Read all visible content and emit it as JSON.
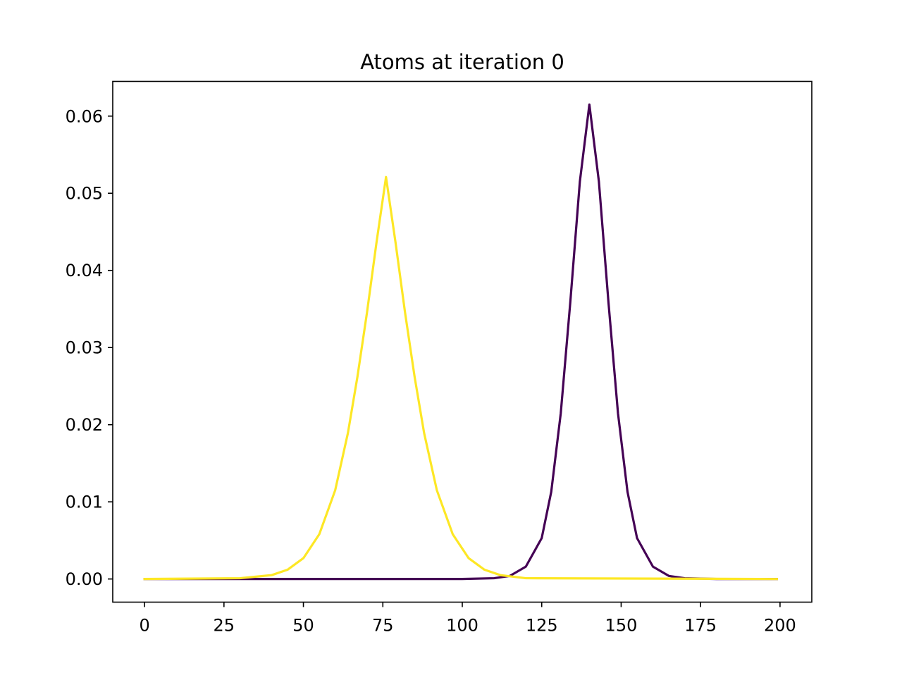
{
  "chart_data": {
    "type": "line",
    "title": "Atoms at iteration 0",
    "xlabel": "",
    "ylabel": "",
    "xlim": [
      -10,
      210
    ],
    "ylim": [
      -0.003,
      0.0645
    ],
    "xticks": [
      0,
      25,
      50,
      75,
      100,
      125,
      150,
      175,
      200
    ],
    "xtick_labels": [
      "0",
      "25",
      "50",
      "75",
      "100",
      "125",
      "150",
      "175",
      "200"
    ],
    "yticks": [
      0.0,
      0.01,
      0.02,
      0.03,
      0.04,
      0.05,
      0.06
    ],
    "ytick_labels": [
      "0.00",
      "0.01",
      "0.02",
      "0.03",
      "0.04",
      "0.05",
      "0.06"
    ],
    "grid": false,
    "legend": "none",
    "series": [
      {
        "color": "#440154",
        "x": [
          0,
          100,
          110,
          115,
          120,
          125,
          128,
          131,
          134,
          137,
          140,
          143,
          146,
          149,
          152,
          155,
          160,
          165,
          170,
          180,
          199
        ],
        "y": [
          0.0,
          0.0,
          0.0001,
          0.0004,
          0.0016,
          0.0053,
          0.0113,
          0.0215,
          0.0359,
          0.0515,
          0.0615,
          0.0515,
          0.0359,
          0.0215,
          0.0113,
          0.0053,
          0.0016,
          0.0004,
          0.0001,
          0.0,
          0.0
        ]
      },
      {
        "color": "#fde725",
        "x": [
          0,
          30,
          40,
          45,
          50,
          55,
          60,
          64,
          67,
          70,
          73,
          76,
          79,
          82,
          85,
          88,
          92,
          97,
          102,
          107,
          112,
          120,
          199
        ],
        "y": [
          0.0,
          0.0001,
          0.0005,
          0.0012,
          0.0027,
          0.0058,
          0.0115,
          0.0189,
          0.0262,
          0.0345,
          0.0436,
          0.0521,
          0.0436,
          0.0345,
          0.0262,
          0.0189,
          0.0115,
          0.0058,
          0.0027,
          0.0012,
          0.0005,
          0.0001,
          0.0
        ]
      }
    ]
  }
}
